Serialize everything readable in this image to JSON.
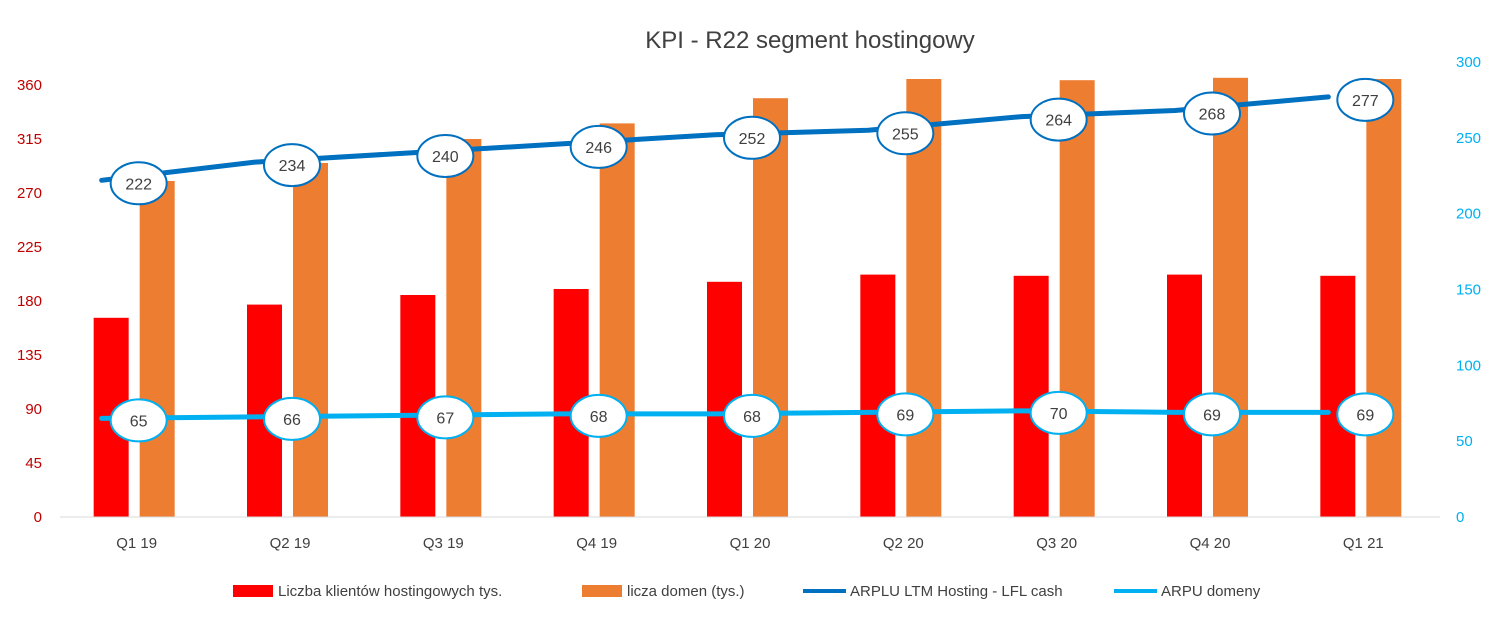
{
  "chart_data": {
    "type": "bar",
    "title": "KPI - R22 segment hostingowy",
    "categories": [
      "Q1 19",
      "Q2 19",
      "Q3 19",
      "Q4 19",
      "Q1 20",
      "Q2 20",
      "Q3 20",
      "Q4 20",
      "Q1 21"
    ],
    "y_left": {
      "ticks": [
        0,
        45,
        90,
        135,
        180,
        225,
        270,
        315,
        360
      ],
      "range": [
        0,
        360
      ]
    },
    "y_right": {
      "ticks": [
        0,
        50,
        100,
        150,
        200,
        250,
        300
      ],
      "range": [
        0,
        300
      ]
    },
    "grid": false,
    "legend_position": "bottom",
    "series": [
      {
        "name": "Liczba klientów hostingowych tys.",
        "type": "bar",
        "axis": "left",
        "color": "#ff0000",
        "values": [
          166,
          177,
          185,
          190,
          196,
          202,
          201,
          202,
          201
        ]
      },
      {
        "name": "licza domen (tys.)",
        "type": "bar",
        "axis": "left",
        "color": "#ed7d31",
        "values": [
          280,
          295,
          315,
          328,
          349,
          365,
          364,
          366,
          365
        ]
      },
      {
        "name": "ARPLU LTM Hosting - LFL cash",
        "type": "line",
        "axis": "right",
        "color": "#0070c0",
        "values": [
          222,
          234,
          240,
          246,
          252,
          255,
          264,
          268,
          277
        ]
      },
      {
        "name": "ARPU domeny",
        "type": "line",
        "axis": "right",
        "color": "#00b0f0",
        "values": [
          65,
          66,
          67,
          68,
          68,
          69,
          70,
          69,
          69
        ]
      }
    ]
  }
}
